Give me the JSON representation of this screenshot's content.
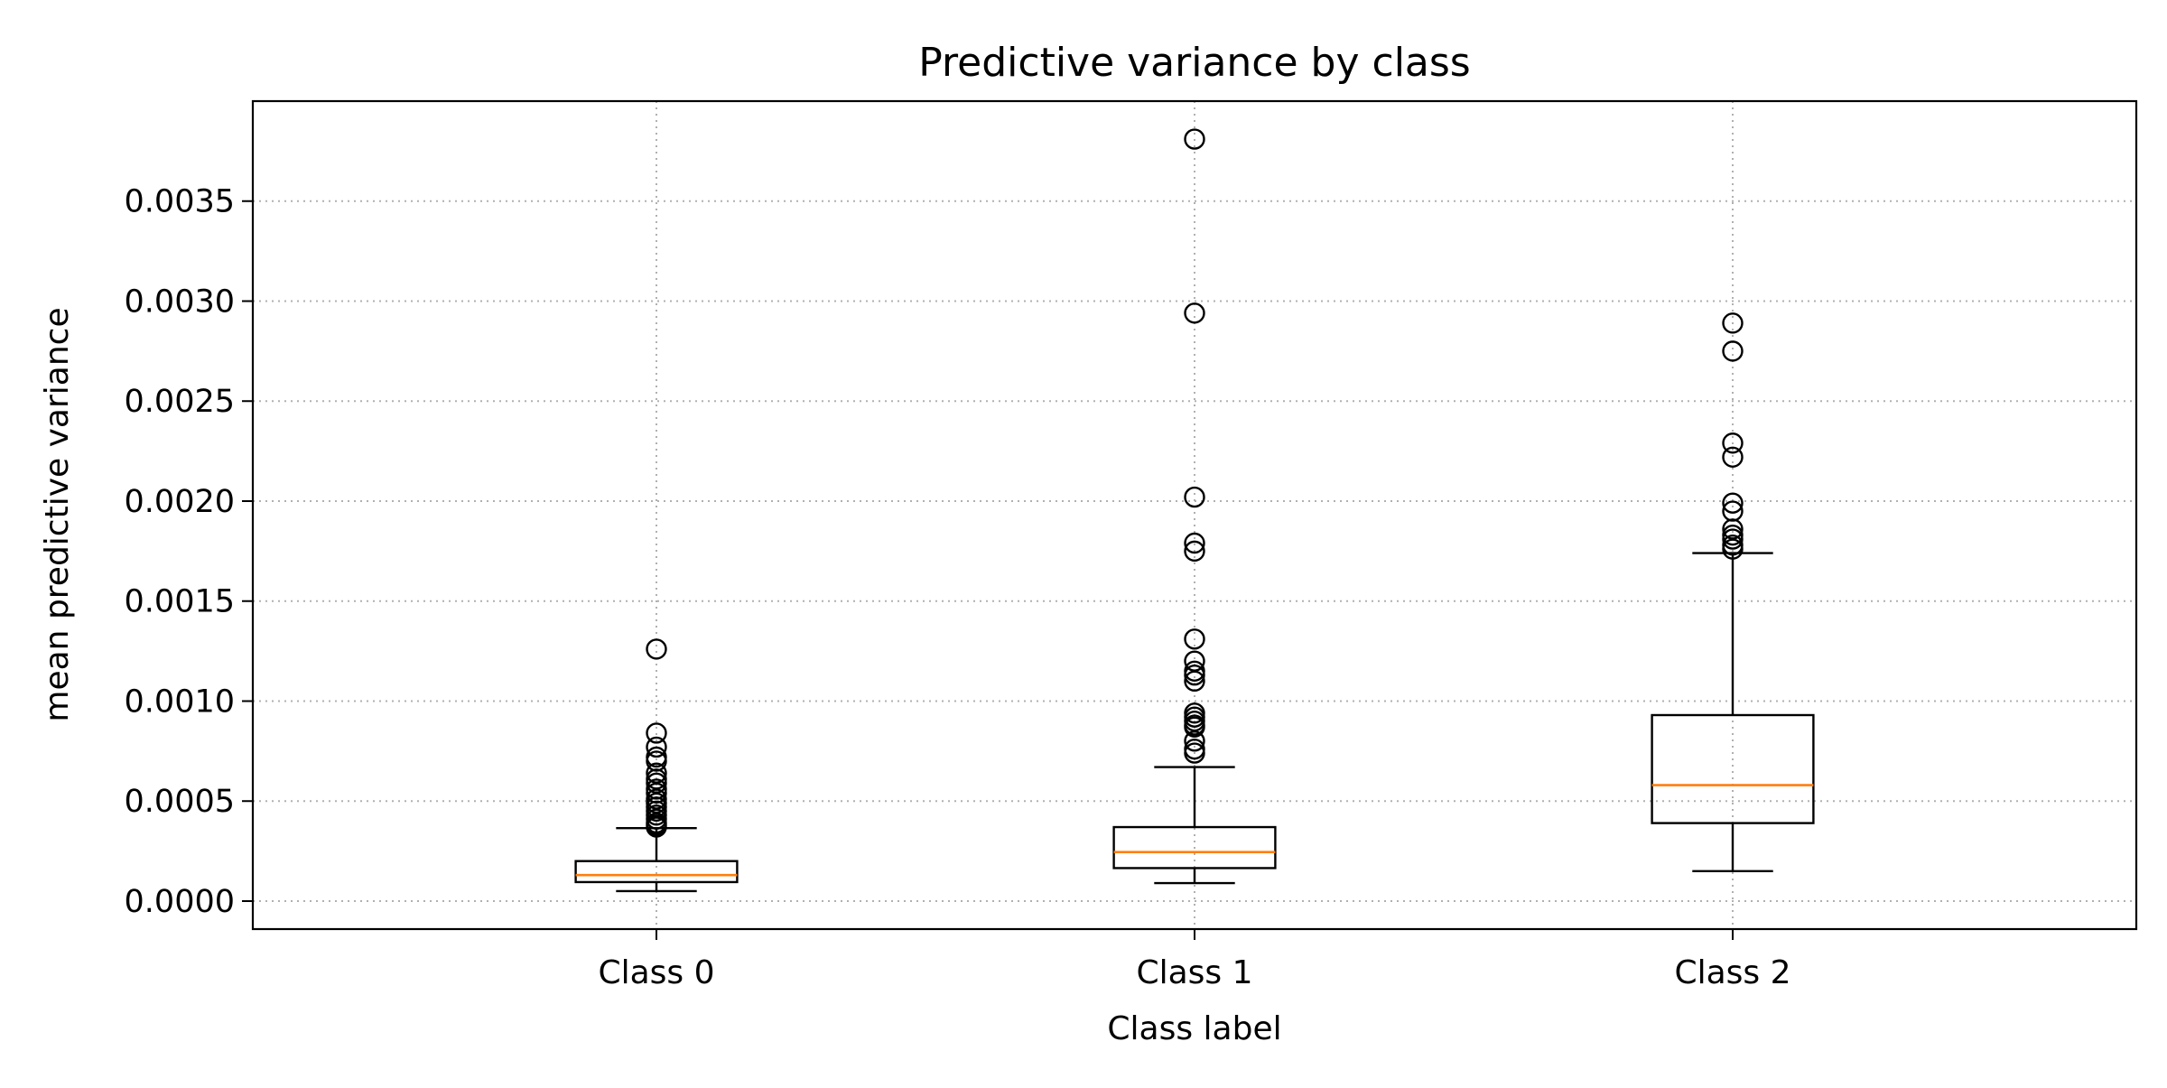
{
  "chart_data": {
    "type": "boxplot",
    "title": "Predictive variance by class",
    "xlabel": "Class label",
    "ylabel": "mean predictive variance",
    "categories": [
      "Class 0",
      "Class 1",
      "Class 2"
    ],
    "ylim": [
      -0.00014,
      0.004
    ],
    "yticks": [
      0.0,
      0.0005,
      0.001,
      0.0015,
      0.002,
      0.0025,
      0.003,
      0.0035
    ],
    "ytick_labels": [
      "0.0000",
      "0.0005",
      "0.0010",
      "0.0015",
      "0.0020",
      "0.0025",
      "0.0030",
      "0.0035"
    ],
    "grid": true,
    "colors": {
      "box": "#000000",
      "median": "#ff7f0e",
      "grid": "#b0b0b0"
    },
    "boxes": [
      {
        "category": "Class 0",
        "whisker_low": 5e-05,
        "q1": 9.5e-05,
        "median": 0.00013,
        "q3": 0.0002,
        "whisker_high": 0.000365,
        "outliers": [
          0.00126,
          0.00084,
          0.00077,
          0.00072,
          0.0007,
          0.00064,
          0.00061,
          0.00059,
          0.00056,
          0.00054,
          0.00051,
          0.00049,
          0.00047,
          0.00045,
          0.00043,
          0.00041,
          0.00039,
          0.00038,
          0.00037
        ]
      },
      {
        "category": "Class 1",
        "whisker_low": 9e-05,
        "q1": 0.000165,
        "median": 0.000245,
        "q3": 0.00037,
        "whisker_high": 0.00067,
        "outliers": [
          0.00381,
          0.00294,
          0.00202,
          0.00179,
          0.00175,
          0.00131,
          0.0012,
          0.00115,
          0.00113,
          0.0011,
          0.00094,
          0.00092,
          0.0009,
          0.00088,
          0.00087,
          0.0008,
          0.00076,
          0.00074
        ]
      },
      {
        "category": "Class 2",
        "whisker_low": 0.00015,
        "q1": 0.00039,
        "median": 0.00058,
        "q3": 0.00093,
        "whisker_high": 0.00174,
        "outliers": [
          0.00289,
          0.00275,
          0.00229,
          0.00222,
          0.00199,
          0.00195,
          0.00186,
          0.00183,
          0.00181,
          0.00178,
          0.00176
        ]
      }
    ]
  }
}
